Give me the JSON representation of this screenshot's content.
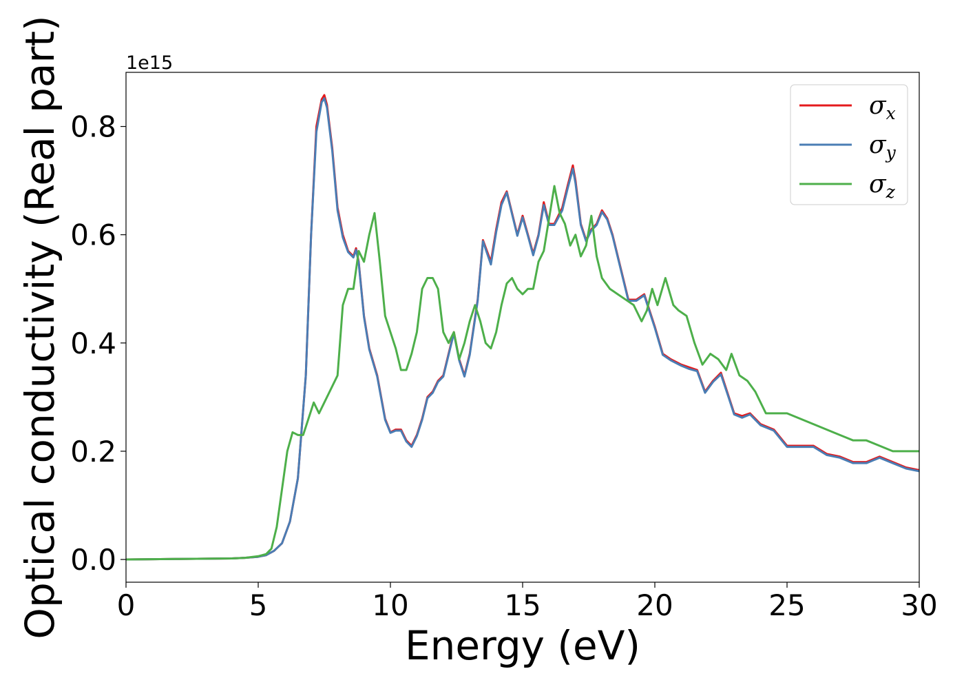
{
  "chart_data": {
    "type": "line",
    "xlabel": "Energy (eV)",
    "ylabel": "Optical conductivity (Real part)",
    "y_offset_text": "1e15",
    "xlim": [
      0,
      30
    ],
    "ylim": [
      -0.042,
      0.9
    ],
    "x_ticks": [
      0,
      5,
      10,
      15,
      20,
      25,
      30
    ],
    "x_tick_labels": [
      "0",
      "5",
      "10",
      "15",
      "20",
      "25",
      "30"
    ],
    "y_ticks": [
      0.0,
      0.2,
      0.4,
      0.6,
      0.8
    ],
    "y_tick_labels": [
      "0.0",
      "0.2",
      "0.4",
      "0.6",
      "0.8"
    ],
    "grid": false,
    "legend_position": "top-right",
    "series": [
      {
        "name": "σx",
        "legend_symbol": "σ",
        "legend_subscript": "x",
        "color": "#e41a1c",
        "x": [
          0,
          1,
          2,
          3,
          4,
          4.5,
          5,
          5.3,
          5.6,
          5.9,
          6.2,
          6.5,
          6.8,
          7.0,
          7.2,
          7.4,
          7.5,
          7.6,
          7.8,
          8.0,
          8.2,
          8.4,
          8.6,
          8.7,
          8.8,
          9.0,
          9.2,
          9.5,
          9.8,
          10.0,
          10.2,
          10.4,
          10.6,
          10.8,
          11.0,
          11.2,
          11.4,
          11.6,
          11.8,
          12.0,
          12.2,
          12.4,
          12.6,
          12.8,
          13.0,
          13.3,
          13.5,
          13.8,
          14.0,
          14.2,
          14.4,
          14.6,
          14.8,
          15.0,
          15.2,
          15.4,
          15.6,
          15.8,
          16.0,
          16.2,
          16.5,
          16.7,
          16.9,
          17.0,
          17.2,
          17.4,
          17.6,
          17.8,
          18.0,
          18.2,
          18.4,
          18.6,
          18.8,
          19.0,
          19.3,
          19.6,
          19.8,
          20.0,
          20.3,
          20.6,
          21.0,
          21.3,
          21.6,
          21.9,
          22.2,
          22.5,
          22.8,
          23.0,
          23.3,
          23.6,
          24.0,
          24.5,
          25.0,
          25.5,
          26.0,
          26.5,
          27.0,
          27.5,
          28.0,
          28.5,
          29.0,
          29.5,
          30.0
        ],
        "y": [
          0.0,
          0.0005,
          0.001,
          0.0015,
          0.002,
          0.003,
          0.005,
          0.008,
          0.016,
          0.03,
          0.07,
          0.15,
          0.34,
          0.6,
          0.8,
          0.85,
          0.858,
          0.84,
          0.76,
          0.65,
          0.6,
          0.57,
          0.56,
          0.575,
          0.55,
          0.45,
          0.39,
          0.34,
          0.26,
          0.235,
          0.24,
          0.24,
          0.22,
          0.21,
          0.23,
          0.26,
          0.3,
          0.31,
          0.33,
          0.34,
          0.38,
          0.42,
          0.37,
          0.34,
          0.38,
          0.48,
          0.59,
          0.55,
          0.61,
          0.66,
          0.68,
          0.64,
          0.6,
          0.635,
          0.6,
          0.565,
          0.6,
          0.66,
          0.62,
          0.62,
          0.65,
          0.69,
          0.728,
          0.7,
          0.62,
          0.59,
          0.61,
          0.62,
          0.645,
          0.63,
          0.6,
          0.56,
          0.52,
          0.48,
          0.48,
          0.49,
          0.46,
          0.43,
          0.38,
          0.37,
          0.36,
          0.355,
          0.35,
          0.31,
          0.33,
          0.345,
          0.3,
          0.27,
          0.265,
          0.27,
          0.25,
          0.24,
          0.21,
          0.21,
          0.21,
          0.195,
          0.19,
          0.18,
          0.18,
          0.19,
          0.18,
          0.17,
          0.165
        ]
      },
      {
        "name": "σy",
        "legend_symbol": "σ",
        "legend_subscript": "y",
        "color": "#4a7db4",
        "x": [
          0,
          1,
          2,
          3,
          4,
          4.5,
          5,
          5.3,
          5.6,
          5.9,
          6.2,
          6.5,
          6.8,
          7.0,
          7.2,
          7.4,
          7.5,
          7.6,
          7.8,
          8.0,
          8.2,
          8.4,
          8.6,
          8.7,
          8.8,
          9.0,
          9.2,
          9.5,
          9.8,
          10.0,
          10.2,
          10.4,
          10.6,
          10.8,
          11.0,
          11.2,
          11.4,
          11.6,
          11.8,
          12.0,
          12.2,
          12.4,
          12.6,
          12.8,
          13.0,
          13.3,
          13.5,
          13.8,
          14.0,
          14.2,
          14.4,
          14.6,
          14.8,
          15.0,
          15.2,
          15.4,
          15.6,
          15.8,
          16.0,
          16.2,
          16.5,
          16.7,
          16.9,
          17.0,
          17.2,
          17.4,
          17.6,
          17.8,
          18.0,
          18.2,
          18.4,
          18.6,
          18.8,
          19.0,
          19.3,
          19.6,
          19.8,
          20.0,
          20.3,
          20.6,
          21.0,
          21.3,
          21.6,
          21.9,
          22.2,
          22.5,
          22.8,
          23.0,
          23.3,
          23.6,
          24.0,
          24.5,
          25.0,
          25.5,
          26.0,
          26.5,
          27.0,
          27.5,
          28.0,
          28.5,
          29.0,
          29.5,
          30.0
        ],
        "y": [
          0.0,
          0.0005,
          0.001,
          0.0015,
          0.002,
          0.003,
          0.005,
          0.008,
          0.016,
          0.03,
          0.07,
          0.15,
          0.34,
          0.6,
          0.79,
          0.845,
          0.852,
          0.835,
          0.755,
          0.645,
          0.595,
          0.568,
          0.558,
          0.572,
          0.548,
          0.448,
          0.388,
          0.338,
          0.258,
          0.234,
          0.238,
          0.238,
          0.218,
          0.208,
          0.228,
          0.258,
          0.298,
          0.308,
          0.328,
          0.338,
          0.378,
          0.418,
          0.368,
          0.338,
          0.378,
          0.478,
          0.588,
          0.545,
          0.605,
          0.655,
          0.678,
          0.638,
          0.598,
          0.632,
          0.598,
          0.562,
          0.598,
          0.655,
          0.618,
          0.618,
          0.645,
          0.685,
          0.722,
          0.695,
          0.618,
          0.588,
          0.608,
          0.618,
          0.642,
          0.628,
          0.598,
          0.558,
          0.518,
          0.478,
          0.478,
          0.488,
          0.458,
          0.428,
          0.378,
          0.368,
          0.358,
          0.352,
          0.348,
          0.308,
          0.328,
          0.342,
          0.298,
          0.268,
          0.262,
          0.268,
          0.248,
          0.238,
          0.208,
          0.208,
          0.208,
          0.193,
          0.188,
          0.178,
          0.178,
          0.188,
          0.178,
          0.168,
          0.163
        ]
      },
      {
        "name": "σz",
        "legend_symbol": "σ",
        "legend_subscript": "z",
        "color": "#4daf4a",
        "x": [
          0,
          1,
          2,
          3,
          4,
          4.5,
          5,
          5.3,
          5.5,
          5.7,
          5.9,
          6.1,
          6.3,
          6.5,
          6.7,
          6.9,
          7.1,
          7.3,
          7.5,
          7.7,
          8.0,
          8.2,
          8.4,
          8.6,
          8.8,
          9.0,
          9.2,
          9.4,
          9.6,
          9.8,
          10.0,
          10.2,
          10.4,
          10.6,
          10.8,
          11.0,
          11.2,
          11.4,
          11.6,
          11.8,
          12.0,
          12.2,
          12.4,
          12.6,
          12.8,
          13.0,
          13.2,
          13.4,
          13.6,
          13.8,
          14.0,
          14.2,
          14.4,
          14.6,
          14.8,
          15.0,
          15.2,
          15.4,
          15.6,
          15.8,
          16.0,
          16.2,
          16.4,
          16.6,
          16.8,
          17.0,
          17.2,
          17.4,
          17.6,
          17.8,
          18.0,
          18.3,
          18.6,
          18.9,
          19.2,
          19.5,
          19.7,
          19.9,
          20.1,
          20.4,
          20.7,
          20.9,
          21.2,
          21.5,
          21.8,
          22.1,
          22.4,
          22.7,
          22.9,
          23.2,
          23.5,
          23.8,
          24.2,
          24.6,
          25.0,
          25.5,
          26.0,
          26.5,
          27.0,
          27.5,
          28.0,
          28.5,
          29.0,
          29.5,
          30.0
        ],
        "y": [
          0.0,
          0.0005,
          0.001,
          0.0015,
          0.002,
          0.003,
          0.006,
          0.01,
          0.02,
          0.06,
          0.13,
          0.2,
          0.235,
          0.23,
          0.23,
          0.26,
          0.29,
          0.27,
          0.29,
          0.31,
          0.34,
          0.47,
          0.5,
          0.5,
          0.57,
          0.55,
          0.6,
          0.64,
          0.55,
          0.45,
          0.42,
          0.39,
          0.35,
          0.35,
          0.38,
          0.42,
          0.5,
          0.52,
          0.52,
          0.5,
          0.42,
          0.4,
          0.42,
          0.37,
          0.4,
          0.44,
          0.47,
          0.44,
          0.4,
          0.39,
          0.42,
          0.47,
          0.51,
          0.52,
          0.5,
          0.49,
          0.5,
          0.5,
          0.55,
          0.57,
          0.63,
          0.69,
          0.64,
          0.62,
          0.58,
          0.6,
          0.56,
          0.58,
          0.635,
          0.56,
          0.52,
          0.5,
          0.49,
          0.48,
          0.47,
          0.44,
          0.46,
          0.5,
          0.47,
          0.52,
          0.47,
          0.46,
          0.45,
          0.4,
          0.36,
          0.38,
          0.37,
          0.35,
          0.38,
          0.34,
          0.33,
          0.31,
          0.27,
          0.27,
          0.27,
          0.26,
          0.25,
          0.24,
          0.23,
          0.22,
          0.22,
          0.21,
          0.2,
          0.2,
          0.2
        ]
      }
    ]
  }
}
